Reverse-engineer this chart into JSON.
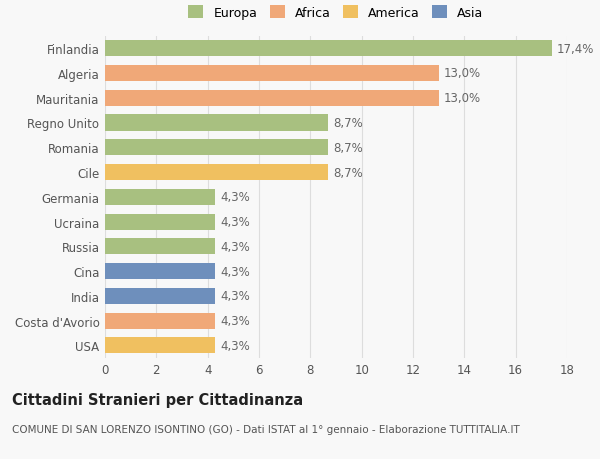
{
  "countries": [
    "USA",
    "Costa d'Avorio",
    "India",
    "Cina",
    "Russia",
    "Ucraina",
    "Germania",
    "Cile",
    "Romania",
    "Regno Unito",
    "Mauritania",
    "Algeria",
    "Finlandia"
  ],
  "values": [
    4.3,
    4.3,
    4.3,
    4.3,
    4.3,
    4.3,
    4.3,
    8.7,
    8.7,
    8.7,
    13.0,
    13.0,
    17.4
  ],
  "labels": [
    "4,3%",
    "4,3%",
    "4,3%",
    "4,3%",
    "4,3%",
    "4,3%",
    "4,3%",
    "8,7%",
    "8,7%",
    "8,7%",
    "13,0%",
    "13,0%",
    "17,4%"
  ],
  "colors": [
    "#f0c060",
    "#f0a878",
    "#6e8fbc",
    "#6e8fbc",
    "#a8c080",
    "#a8c080",
    "#a8c080",
    "#f0c060",
    "#a8c080",
    "#a8c080",
    "#f0a878",
    "#f0a878",
    "#a8c080"
  ],
  "legend_labels": [
    "Europa",
    "Africa",
    "America",
    "Asia"
  ],
  "legend_colors": [
    "#a8c080",
    "#f0a878",
    "#f0c060",
    "#6e8fbc"
  ],
  "title": "Cittadini Stranieri per Cittadinanza",
  "subtitle": "COMUNE DI SAN LORENZO ISONTINO (GO) - Dati ISTAT al 1° gennaio - Elaborazione TUTTITALIA.IT",
  "xlim": [
    0,
    18
  ],
  "xticks": [
    0,
    2,
    4,
    6,
    8,
    10,
    12,
    14,
    16,
    18
  ],
  "background_color": "#f8f8f8",
  "grid_color": "#dddddd",
  "bar_height": 0.65,
  "label_fontsize": 8.5,
  "tick_fontsize": 8.5,
  "title_fontsize": 10.5,
  "subtitle_fontsize": 7.5,
  "legend_fontsize": 9
}
